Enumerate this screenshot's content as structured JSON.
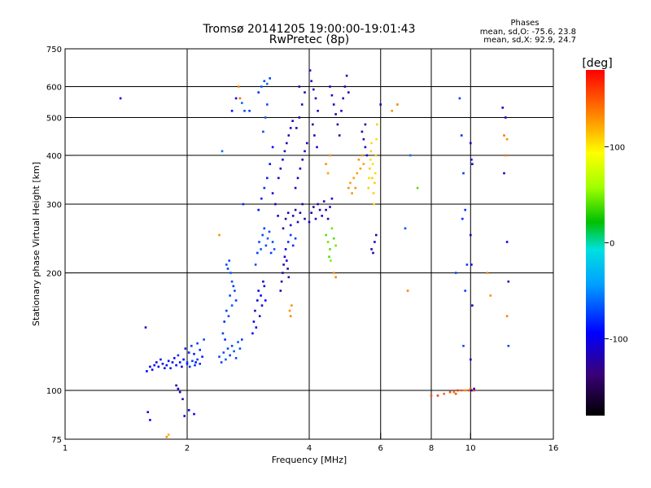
{
  "chart_data": {
    "type": "scatter",
    "title": "Tromsø 20141205 19:00:00-19:01:43",
    "subtitle": "RwPretec (8p)",
    "stats": {
      "heading": "Phases",
      "line_o": "mean, sd,O: -75.6, 23.8",
      "line_x": "mean, sd,X:  92.9, 24.7"
    },
    "xlabel": "Frequency [MHz]",
    "ylabel": "Stationary phase Virtual Height [km]",
    "x_scale": "log",
    "y_scale": "log",
    "xlim": [
      1,
      16
    ],
    "ylim": [
      75,
      750
    ],
    "x_ticks": [
      {
        "v": 1,
        "label": "1"
      },
      {
        "v": 2,
        "label": "2"
      },
      {
        "v": 4,
        "label": "4"
      },
      {
        "v": 6,
        "label": "6"
      },
      {
        "v": 8,
        "label": "8"
      },
      {
        "v": 10,
        "label": "10"
      },
      {
        "v": 16,
        "label": "16"
      }
    ],
    "x_grid": [
      2,
      4,
      6,
      8,
      10
    ],
    "y_ticks": [
      {
        "v": 75,
        "label": "75"
      },
      {
        "v": 100,
        "label": "100"
      },
      {
        "v": 200,
        "label": "200"
      },
      {
        "v": 300,
        "label": "300"
      },
      {
        "v": 400,
        "label": "400"
      },
      {
        "v": 500,
        "label": "500"
      },
      {
        "v": 600,
        "label": "600"
      },
      {
        "v": 750,
        "label": "750"
      }
    ],
    "y_grid": [
      100,
      200,
      300,
      400,
      500,
      600
    ],
    "colorbar": {
      "label": "[deg]",
      "range": [
        -180,
        180
      ],
      "ticks": [
        {
          "v": 100,
          "label": "100"
        },
        {
          "v": 0,
          "label": "0"
        },
        {
          "v": -100,
          "label": "-100"
        }
      ]
    },
    "points": [
      [
        1.37,
        560,
        -100
      ],
      [
        1.58,
        145,
        -110
      ],
      [
        1.59,
        112,
        -95
      ],
      [
        1.62,
        115,
        -100
      ],
      [
        1.64,
        113,
        -90
      ],
      [
        1.66,
        116,
        -95
      ],
      [
        1.68,
        118,
        -100
      ],
      [
        1.7,
        115,
        -95
      ],
      [
        1.72,
        120,
        -85
      ],
      [
        1.74,
        117,
        -90
      ],
      [
        1.76,
        114,
        -100
      ],
      [
        1.78,
        116,
        -95
      ],
      [
        1.8,
        119,
        -90
      ],
      [
        1.82,
        114,
        -85
      ],
      [
        1.84,
        118,
        -100
      ],
      [
        1.86,
        121,
        -90
      ],
      [
        1.88,
        116,
        -95
      ],
      [
        1.9,
        123,
        -80
      ],
      [
        1.92,
        118,
        -90
      ],
      [
        1.94,
        115,
        -100
      ],
      [
        1.96,
        120,
        -95
      ],
      [
        1.98,
        128,
        -85
      ],
      [
        2.0,
        117,
        -90
      ],
      [
        2.02,
        125,
        -80
      ],
      [
        2.05,
        130,
        -75
      ],
      [
        2.08,
        124,
        -85
      ],
      [
        2.1,
        118,
        -90
      ],
      [
        2.12,
        132,
        -75
      ],
      [
        2.15,
        127,
        -80
      ],
      [
        2.18,
        122,
        -85
      ],
      [
        2.2,
        135,
        -70
      ],
      [
        2.0,
        118,
        -75
      ],
      [
        2.03,
        115,
        -80
      ],
      [
        2.06,
        119,
        -75
      ],
      [
        2.09,
        116,
        -80
      ],
      [
        2.12,
        120,
        -75
      ],
      [
        2.15,
        117,
        -80
      ],
      [
        1.6,
        88,
        -100
      ],
      [
        1.62,
        84,
        -95
      ],
      [
        1.78,
        76,
        130
      ],
      [
        1.8,
        77,
        120
      ],
      [
        1.88,
        103,
        -120
      ],
      [
        1.9,
        101,
        -115
      ],
      [
        1.92,
        99,
        -120
      ],
      [
        1.95,
        95,
        -115
      ],
      [
        1.97,
        86,
        -100
      ],
      [
        2.02,
        89,
        -95
      ],
      [
        2.08,
        87,
        -100
      ],
      [
        2.4,
        122,
        -70
      ],
      [
        2.43,
        118,
        -75
      ],
      [
        2.46,
        125,
        -70
      ],
      [
        2.49,
        120,
        -65
      ],
      [
        2.52,
        128,
        -70
      ],
      [
        2.55,
        123,
        -75
      ],
      [
        2.58,
        130,
        -70
      ],
      [
        2.61,
        126,
        -65
      ],
      [
        2.64,
        121,
        -70
      ],
      [
        2.67,
        133,
        -65
      ],
      [
        2.7,
        128,
        -70
      ],
      [
        2.73,
        135,
        -75
      ],
      [
        2.5,
        210,
        -70
      ],
      [
        2.52,
        205,
        -75
      ],
      [
        2.54,
        215,
        -70
      ],
      [
        2.56,
        200,
        -65
      ],
      [
        2.58,
        190,
        -70
      ],
      [
        2.6,
        185,
        -75
      ],
      [
        2.55,
        175,
        -70
      ],
      [
        2.58,
        165,
        -65
      ],
      [
        2.62,
        180,
        -70
      ],
      [
        2.64,
        170,
        -75
      ],
      [
        2.47,
        150,
        -80
      ],
      [
        2.5,
        160,
        -75
      ],
      [
        2.53,
        155,
        -70
      ],
      [
        2.45,
        140,
        -75
      ],
      [
        2.48,
        135,
        -80
      ],
      [
        2.4,
        250,
        130
      ],
      [
        2.44,
        410,
        -60
      ],
      [
        2.58,
        520,
        -90
      ],
      [
        2.64,
        560,
        -100
      ],
      [
        2.68,
        600,
        135
      ],
      [
        2.7,
        560,
        140
      ],
      [
        2.73,
        545,
        -60
      ],
      [
        2.77,
        520,
        -70
      ],
      [
        2.75,
        300,
        -80
      ],
      [
        2.85,
        520,
        -75
      ],
      [
        2.9,
        140,
        -95
      ],
      [
        2.92,
        150,
        -100
      ],
      [
        2.94,
        160,
        -110
      ],
      [
        2.96,
        145,
        -95
      ],
      [
        2.98,
        170,
        -105
      ],
      [
        3.0,
        180,
        -100
      ],
      [
        3.02,
        155,
        -110
      ],
      [
        3.04,
        175,
        -95
      ],
      [
        3.06,
        165,
        -105
      ],
      [
        3.08,
        190,
        -100
      ],
      [
        3.1,
        185,
        -110
      ],
      [
        3.12,
        170,
        -95
      ],
      [
        2.95,
        210,
        -70
      ],
      [
        2.98,
        225,
        -75
      ],
      [
        3.01,
        240,
        -70
      ],
      [
        3.04,
        230,
        -65
      ],
      [
        3.07,
        250,
        -70
      ],
      [
        3.1,
        260,
        -75
      ],
      [
        3.13,
        235,
        -70
      ],
      [
        3.16,
        245,
        -65
      ],
      [
        3.19,
        255,
        -70
      ],
      [
        3.22,
        225,
        -75
      ],
      [
        3.25,
        240,
        -70
      ],
      [
        3.28,
        230,
        -65
      ],
      [
        3.0,
        290,
        -90
      ],
      [
        3.05,
        310,
        -85
      ],
      [
        3.1,
        330,
        -80
      ],
      [
        3.15,
        350,
        -85
      ],
      [
        3.2,
        380,
        -90
      ],
      [
        3.25,
        420,
        -95
      ],
      [
        3.08,
        460,
        -70
      ],
      [
        3.12,
        500,
        -65
      ],
      [
        3.15,
        540,
        -70
      ],
      [
        3.05,
        600,
        -65
      ],
      [
        3.1,
        620,
        -70
      ],
      [
        3.15,
        610,
        -60
      ],
      [
        3.2,
        630,
        -75
      ],
      [
        3.0,
        580,
        -80
      ],
      [
        3.25,
        320,
        -110
      ],
      [
        3.3,
        300,
        -115
      ],
      [
        3.35,
        280,
        -120
      ],
      [
        3.4,
        180,
        -110
      ],
      [
        3.42,
        190,
        -115
      ],
      [
        3.44,
        200,
        -120
      ],
      [
        3.46,
        210,
        -115
      ],
      [
        3.48,
        220,
        -110
      ],
      [
        3.5,
        230,
        -105
      ],
      [
        3.52,
        215,
        -110
      ],
      [
        3.54,
        205,
        -115
      ],
      [
        3.56,
        195,
        -120
      ],
      [
        3.58,
        160,
        130
      ],
      [
        3.6,
        155,
        135
      ],
      [
        3.62,
        165,
        130
      ],
      [
        3.36,
        350,
        -115
      ],
      [
        3.4,
        370,
        -120
      ],
      [
        3.44,
        390,
        -110
      ],
      [
        3.48,
        410,
        -115
      ],
      [
        3.52,
        430,
        -120
      ],
      [
        3.56,
        450,
        -115
      ],
      [
        3.6,
        470,
        -110
      ],
      [
        3.64,
        490,
        -115
      ],
      [
        3.45,
        260,
        -120
      ],
      [
        3.5,
        275,
        -125
      ],
      [
        3.55,
        285,
        -120
      ],
      [
        3.6,
        265,
        -115
      ],
      [
        3.65,
        280,
        -120
      ],
      [
        3.7,
        290,
        -125
      ],
      [
        3.75,
        270,
        -120
      ],
      [
        3.8,
        285,
        -115
      ],
      [
        3.85,
        300,
        -120
      ],
      [
        3.9,
        275,
        -125
      ],
      [
        3.7,
        330,
        -110
      ],
      [
        3.75,
        350,
        -115
      ],
      [
        3.8,
        370,
        -110
      ],
      [
        3.85,
        390,
        -120
      ],
      [
        3.9,
        410,
        -115
      ],
      [
        3.95,
        430,
        -110
      ],
      [
        3.72,
        470,
        -115
      ],
      [
        3.78,
        500,
        -120
      ],
      [
        3.84,
        540,
        -115
      ],
      [
        3.9,
        580,
        -120
      ],
      [
        3.78,
        600,
        -110
      ],
      [
        3.55,
        240,
        -80
      ],
      [
        3.6,
        250,
        -75
      ],
      [
        3.65,
        235,
        -80
      ],
      [
        3.7,
        245,
        -75
      ],
      [
        4.0,
        270,
        -110
      ],
      [
        4.05,
        285,
        -115
      ],
      [
        4.1,
        295,
        -120
      ],
      [
        4.15,
        275,
        -115
      ],
      [
        4.2,
        300,
        -110
      ],
      [
        4.25,
        290,
        -120
      ],
      [
        4.3,
        280,
        -115
      ],
      [
        4.35,
        305,
        -110
      ],
      [
        4.4,
        290,
        -115
      ],
      [
        4.45,
        275,
        -120
      ],
      [
        4.5,
        295,
        -115
      ],
      [
        4.55,
        310,
        -110
      ],
      [
        4.02,
        660,
        -110
      ],
      [
        4.05,
        620,
        -115
      ],
      [
        4.1,
        590,
        -120
      ],
      [
        4.15,
        560,
        -110
      ],
      [
        4.2,
        520,
        -115
      ],
      [
        4.08,
        480,
        -120
      ],
      [
        4.12,
        450,
        -115
      ],
      [
        4.18,
        420,
        -110
      ],
      [
        4.4,
        380,
        130
      ],
      [
        4.45,
        360,
        125
      ],
      [
        4.5,
        400,
        130
      ],
      [
        4.4,
        250,
        40
      ],
      [
        4.45,
        240,
        45
      ],
      [
        4.5,
        230,
        40
      ],
      [
        4.55,
        260,
        45
      ],
      [
        4.6,
        245,
        40
      ],
      [
        4.65,
        235,
        45
      ],
      [
        4.48,
        220,
        40
      ],
      [
        4.52,
        215,
        50
      ],
      [
        4.6,
        200,
        130
      ],
      [
        4.65,
        195,
        135
      ],
      [
        4.5,
        600,
        -110
      ],
      [
        4.55,
        570,
        -115
      ],
      [
        4.6,
        540,
        -110
      ],
      [
        4.65,
        510,
        -115
      ],
      [
        4.7,
        480,
        -120
      ],
      [
        4.75,
        450,
        -115
      ],
      [
        4.8,
        520,
        -110
      ],
      [
        4.85,
        560,
        -115
      ],
      [
        4.9,
        600,
        -120
      ],
      [
        4.95,
        640,
        -115
      ],
      [
        5.0,
        580,
        -110
      ],
      [
        5.0,
        330,
        130
      ],
      [
        5.05,
        340,
        125
      ],
      [
        5.1,
        320,
        130
      ],
      [
        5.15,
        350,
        125
      ],
      [
        5.2,
        330,
        130
      ],
      [
        5.25,
        360,
        125
      ],
      [
        5.3,
        390,
        130
      ],
      [
        5.35,
        370,
        125
      ],
      [
        5.4,
        400,
        130
      ],
      [
        5.45,
        380,
        125
      ],
      [
        5.4,
        460,
        -120
      ],
      [
        5.45,
        440,
        -115
      ],
      [
        5.5,
        420,
        -110
      ],
      [
        5.55,
        400,
        -115
      ],
      [
        5.5,
        480,
        -110
      ],
      [
        5.6,
        330,
        110
      ],
      [
        5.62,
        350,
        105
      ],
      [
        5.64,
        370,
        110
      ],
      [
        5.66,
        390,
        105
      ],
      [
        5.68,
        410,
        110
      ],
      [
        5.7,
        430,
        105
      ],
      [
        5.72,
        350,
        110
      ],
      [
        5.74,
        380,
        105
      ],
      [
        5.76,
        320,
        110
      ],
      [
        5.78,
        300,
        105
      ],
      [
        5.8,
        340,
        110
      ],
      [
        5.82,
        360,
        105
      ],
      [
        5.84,
        400,
        110
      ],
      [
        5.86,
        440,
        105
      ],
      [
        5.88,
        480,
        110
      ],
      [
        5.7,
        230,
        -120
      ],
      [
        5.75,
        225,
        -115
      ],
      [
        5.8,
        240,
        -110
      ],
      [
        5.85,
        250,
        -120
      ],
      [
        6.0,
        540,
        -110
      ],
      [
        6.4,
        520,
        130
      ],
      [
        6.6,
        540,
        135
      ],
      [
        6.9,
        260,
        -70
      ],
      [
        7.1,
        400,
        -60
      ],
      [
        7.4,
        330,
        40
      ],
      [
        7.0,
        180,
        135
      ],
      [
        8.0,
        97,
        150
      ],
      [
        8.3,
        97,
        160
      ],
      [
        8.6,
        98,
        145
      ],
      [
        8.9,
        99,
        155
      ],
      [
        9.1,
        99,
        140
      ],
      [
        9.2,
        98,
        150
      ],
      [
        9.3,
        100,
        160
      ],
      [
        9.5,
        100,
        145
      ],
      [
        9.7,
        100,
        130
      ],
      [
        9.9,
        100,
        150
      ],
      [
        10.0,
        101,
        145
      ],
      [
        10.2,
        100,
        155
      ],
      [
        9.4,
        560,
        -75
      ],
      [
        9.5,
        450,
        -80
      ],
      [
        9.6,
        360,
        -75
      ],
      [
        9.7,
        290,
        -80
      ],
      [
        9.8,
        210,
        -75
      ],
      [
        9.6,
        130,
        -70
      ],
      [
        9.55,
        275,
        -80
      ],
      [
        9.7,
        180,
        -75
      ],
      [
        9.2,
        200,
        -70
      ],
      [
        10.0,
        430,
        -105
      ],
      [
        10.05,
        390,
        -110
      ],
      [
        10.1,
        380,
        -105
      ],
      [
        10.0,
        250,
        -110
      ],
      [
        10.05,
        210,
        -105
      ],
      [
        10.1,
        165,
        -110
      ],
      [
        10.0,
        120,
        -105
      ],
      [
        10.05,
        100,
        -110
      ],
      [
        10.2,
        101,
        -115
      ],
      [
        11.0,
        200,
        130
      ],
      [
        12.0,
        530,
        -100
      ],
      [
        12.2,
        500,
        -105
      ],
      [
        12.1,
        450,
        140
      ],
      [
        12.3,
        440,
        130
      ],
      [
        12.1,
        360,
        -110
      ],
      [
        12.3,
        240,
        -105
      ],
      [
        12.4,
        190,
        -110
      ],
      [
        12.3,
        155,
        135
      ],
      [
        12.4,
        130,
        -70
      ],
      [
        12.2,
        400,
        140
      ],
      [
        11.2,
        175,
        130
      ]
    ]
  }
}
